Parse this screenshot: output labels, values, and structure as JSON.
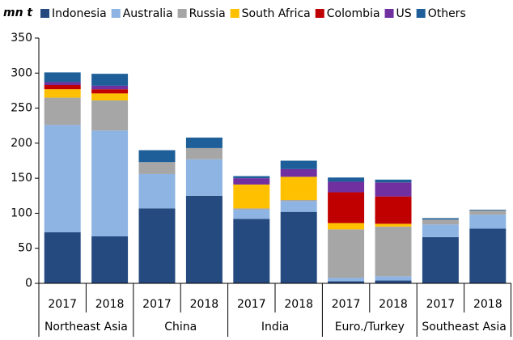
{
  "chart_data": {
    "type": "stacked_bar",
    "y_label": "mn t",
    "categories": [
      "2017",
      "2018",
      "2017",
      "2018",
      "2017",
      "2018",
      "2017",
      "2018",
      "2017",
      "2018"
    ],
    "groups": [
      "Northeast Asia",
      "China",
      "India",
      "Euro./Turkey",
      "Southeast Asia"
    ],
    "series": [
      {
        "name": "Indonesia",
        "color": "#254a80",
        "values": [
          73,
          67,
          107,
          125,
          92,
          102,
          3,
          4,
          66,
          78
        ]
      },
      {
        "name": "Australia",
        "color": "#8db4e2",
        "values": [
          153,
          151,
          49,
          52,
          13,
          15,
          5,
          6,
          18,
          20
        ]
      },
      {
        "name": "Russia",
        "color": "#a6a6a6",
        "values": [
          39,
          43,
          17,
          16,
          2,
          2,
          69,
          71,
          7,
          6
        ]
      },
      {
        "name": "South Africa",
        "color": "#ffc000",
        "values": [
          12,
          10,
          0,
          0,
          34,
          33,
          9,
          4,
          0,
          0
        ]
      },
      {
        "name": "Colombia",
        "color": "#c00000",
        "values": [
          6,
          6,
          0,
          0,
          0,
          0,
          44,
          39,
          0,
          0
        ]
      },
      {
        "name": "US",
        "color": "#7030a0",
        "values": [
          4,
          5,
          0,
          0,
          9,
          11,
          15,
          20,
          0,
          0
        ]
      },
      {
        "name": "Others",
        "color": "#1f5f99",
        "values": [
          14,
          17,
          17,
          15,
          3,
          12,
          6,
          4,
          2,
          1
        ]
      }
    ],
    "ylim": [
      0,
      350
    ],
    "yticks": [
      0,
      50,
      100,
      150,
      200,
      250,
      300,
      350
    ],
    "grid": false
  }
}
